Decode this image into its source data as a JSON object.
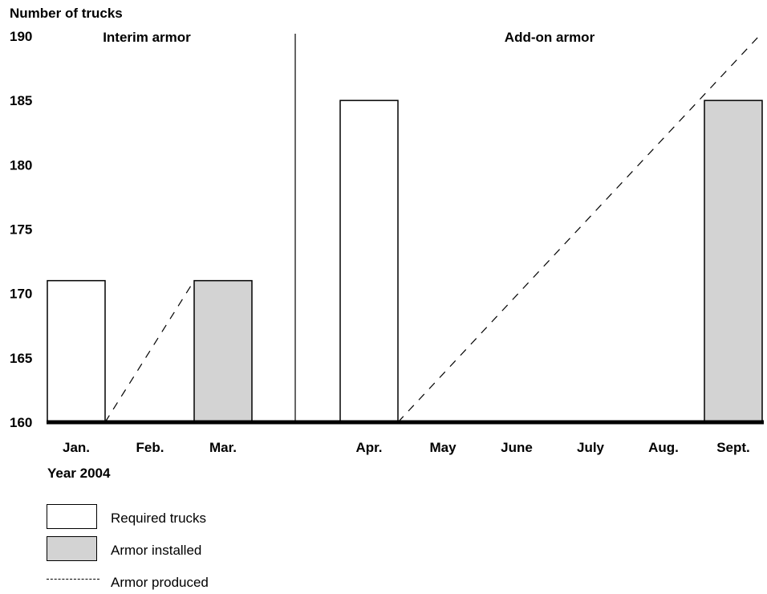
{
  "chart_data": {
    "type": "bar",
    "y_axis_title": "Number of trucks",
    "x_axis_title": "Year 2004",
    "ylim": [
      160,
      190
    ],
    "y_ticks": [
      160,
      165,
      170,
      175,
      180,
      185,
      190
    ],
    "categories": [
      "Jan.",
      "Feb.",
      "Mar.",
      "Apr.",
      "May",
      "June",
      "July",
      "Aug.",
      "Sept."
    ],
    "section_labels": [
      "Interim armor",
      "Add-on armor"
    ],
    "series": [
      {
        "name": "Required trucks",
        "kind": "bar",
        "color": "#ffffff",
        "values": [
          171,
          null,
          null,
          185,
          null,
          null,
          null,
          null,
          null
        ]
      },
      {
        "name": "Armor installed",
        "kind": "bar",
        "color": "#d3d3d3",
        "values": [
          null,
          null,
          171,
          null,
          null,
          null,
          null,
          null,
          185
        ]
      },
      {
        "name": "Armor produced",
        "kind": "dashed-line",
        "segments": [
          {
            "from": [
              "Feb.",
              160
            ],
            "to": [
              "Mar.",
              171
            ]
          },
          {
            "from": [
              "May",
              160
            ],
            "to": [
              "Sept.",
              190
            ]
          }
        ]
      }
    ],
    "grid": false,
    "legend_position": "bottom-left"
  }
}
